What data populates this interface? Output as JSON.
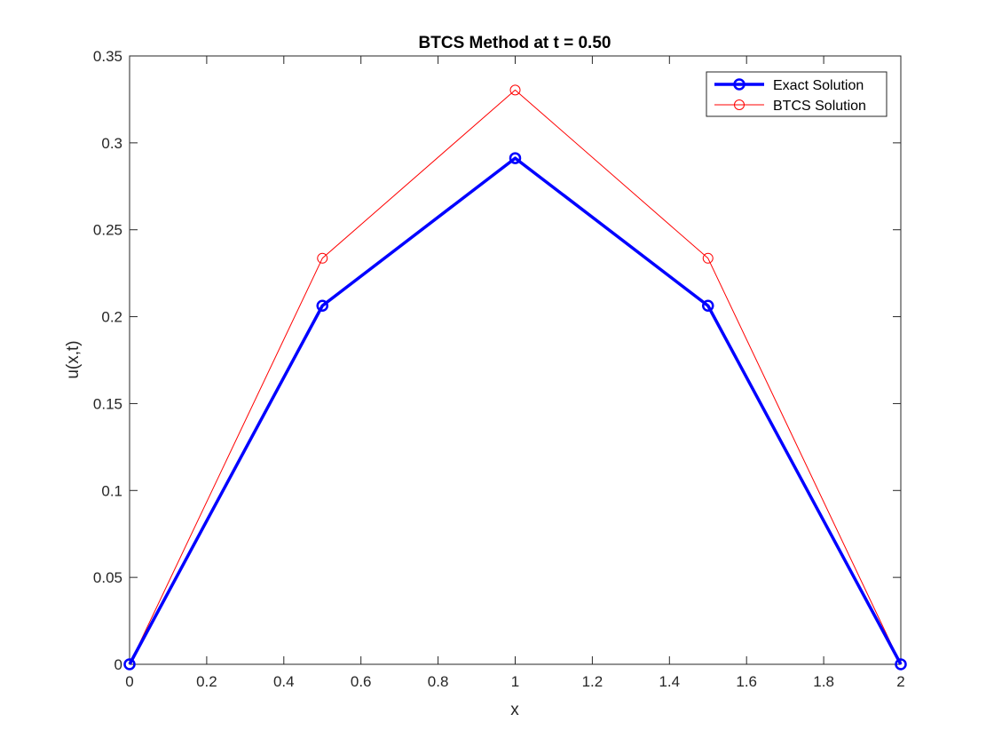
{
  "chart_data": {
    "type": "line",
    "title": "BTCS Method at t = 0.50",
    "xlabel": "x",
    "ylabel": "u(x,t)",
    "xlim": [
      0,
      2
    ],
    "ylim": [
      0,
      0.35
    ],
    "xticks": [
      0,
      0.2,
      0.4,
      0.6,
      0.8,
      1,
      1.2,
      1.4,
      1.6,
      1.8,
      2
    ],
    "xtick_labels": [
      "0",
      "0.2",
      "0.4",
      "0.6",
      "0.8",
      "1",
      "1.2",
      "1.4",
      "1.6",
      "1.8",
      "2"
    ],
    "yticks": [
      0,
      0.05,
      0.1,
      0.15,
      0.2,
      0.25,
      0.3,
      0.35
    ],
    "ytick_labels": [
      "0",
      "0.05",
      "0.1",
      "0.15",
      "0.2",
      "0.25",
      "0.3",
      "0.35"
    ],
    "grid": false,
    "legend_position": "top-right",
    "x": [
      0,
      0.5,
      1,
      1.5,
      2
    ],
    "series": [
      {
        "name": "Exact Solution",
        "values": [
          0,
          0.2063,
          0.2912,
          0.2063,
          0
        ],
        "color": "#0000ff",
        "marker": "circle",
        "line_style": "thick"
      },
      {
        "name": "BTCS Solution",
        "values": [
          0,
          0.2336,
          0.3304,
          0.2336,
          0
        ],
        "color": "#ff0000",
        "marker": "circle",
        "line_style": "thin"
      }
    ]
  }
}
